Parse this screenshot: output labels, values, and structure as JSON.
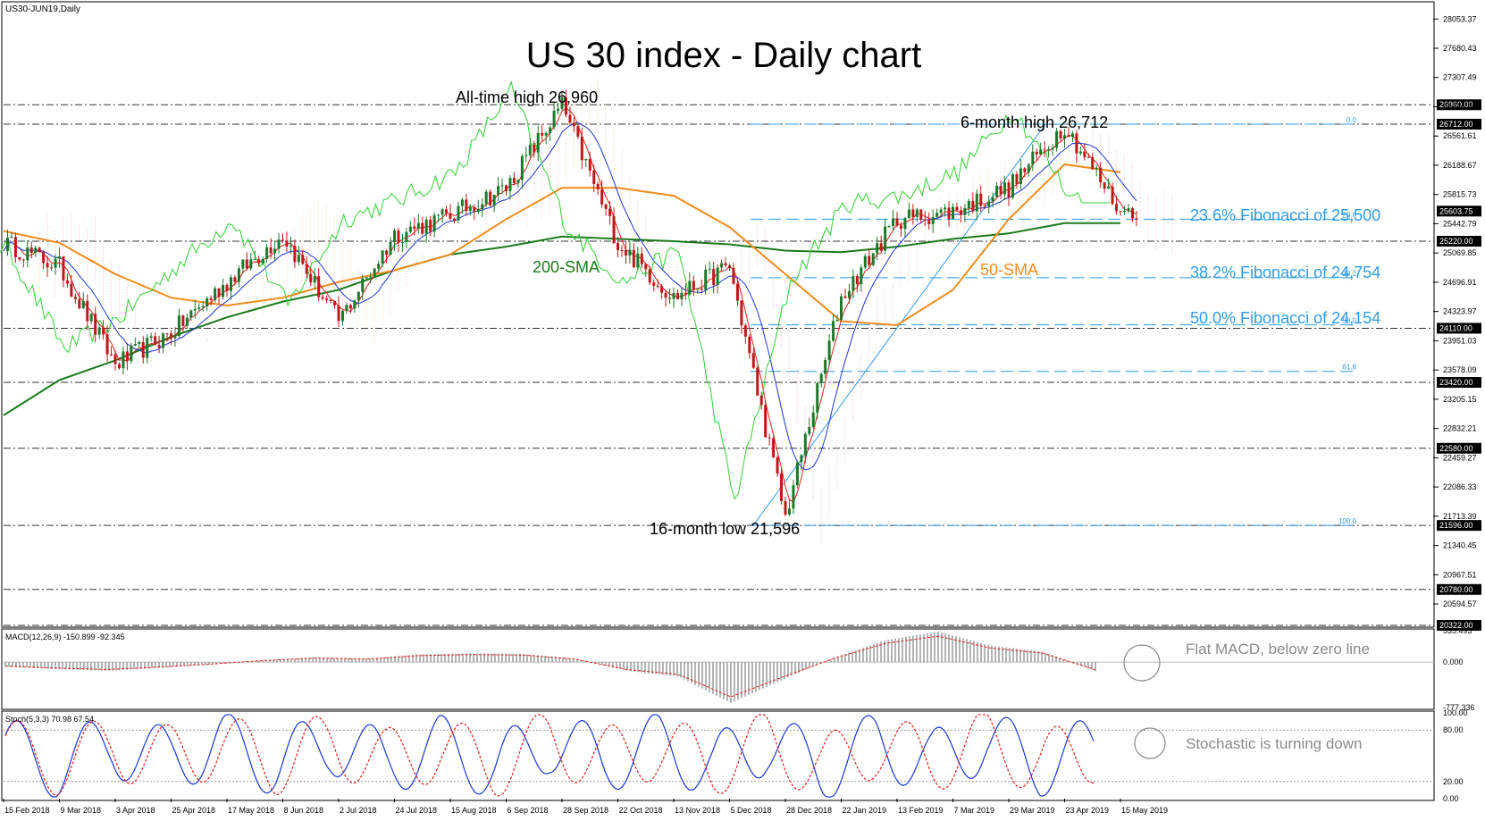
{
  "chart_data": [
    {
      "type": "candlestick",
      "symbol_label": "US30-JUN19,Daily",
      "title": "US 30 index - Daily chart",
      "ylim": [
        20322,
        28250
      ],
      "price_axis_ticks": [
        28053.37,
        27680.43,
        27307.49,
        26934.55,
        26561.61,
        26188.67,
        25815.73,
        25442.79,
        25069.85,
        24696.91,
        24323.97,
        23951.03,
        23578.09,
        23205.15,
        22832.21,
        22459.27,
        22086.33,
        21713.39,
        21340.45,
        20967.51,
        20594.57
      ],
      "price_axis_tick_labels": [
        "28053.37",
        "27680.43",
        "27307.49",
        "26934.55",
        "26561.61",
        "26188.67",
        "25815.73",
        "25442.79",
        "25069.85",
        "24696.91",
        "24323.97",
        "23951.03",
        "23578.09",
        "23205.15",
        "22832.21",
        "22459.27",
        "22086.33",
        "21713.39",
        "21340.45",
        "20967.51",
        "20594.57"
      ],
      "horizontal_levels": [
        {
          "value": 26960,
          "label": "26960.00",
          "style": "dash-dot"
        },
        {
          "value": 26712,
          "label": "26712.00",
          "style": "dash-dot"
        },
        {
          "value": 25220,
          "label": "25220.00",
          "style": "dash-dot"
        },
        {
          "value": 24110,
          "label": "24110.00",
          "style": "dash-dot"
        },
        {
          "value": 23420,
          "label": "23420.00",
          "style": "dash-dot"
        },
        {
          "value": 22580,
          "label": "22580.00",
          "style": "dash-dot"
        },
        {
          "value": 21596,
          "label": "21596.00",
          "style": "dash-dot"
        },
        {
          "value": 20780,
          "label": "20780.00",
          "style": "dash-dot"
        },
        {
          "value": 20322,
          "label": "20322.00",
          "style": "dash-dot"
        }
      ],
      "current_price": {
        "value": 25603.75,
        "label": "25603.75"
      },
      "fibonacci": [
        {
          "ratio": "0.0",
          "value": 26712
        },
        {
          "ratio": "23.6",
          "value": 25500
        },
        {
          "ratio": "38.2",
          "value": 24754
        },
        {
          "ratio": "50.0",
          "value": 24154
        },
        {
          "ratio": "61.8",
          "value": 23560
        },
        {
          "ratio": "100.0",
          "value": 21596
        }
      ],
      "x_axis_labels": [
        "15 Feb 2018",
        "9 Mar 2018",
        "3 Apr 2018",
        "25 Apr 2018",
        "17 May 2018",
        "8 Jun 2018",
        "2 Jul 2018",
        "24 Jul 2018",
        "15 Aug 2018",
        "6 Sep 2018",
        "28 Sep 2018",
        "22 Oct 2018",
        "13 Nov 2018",
        "5 Dec 2018",
        "28 Dec 2018",
        "22 Jan 2019",
        "13 Feb 2019",
        "7 Mar 2019",
        "29 Mar 2019",
        "23 Apr 2019",
        "15 May 2019"
      ],
      "key_points": [
        {
          "date": "15 Feb 2018",
          "close": 25200
        },
        {
          "date": "9 Mar 2018",
          "close": 24900
        },
        {
          "date": "3 Apr 2018",
          "close": 23650
        },
        {
          "date": "25 Apr 2018",
          "close": 24050
        },
        {
          "date": "17 May 2018",
          "close": 24700
        },
        {
          "date": "8 Jun 2018",
          "close": 25300
        },
        {
          "date": "2 Jul 2018",
          "close": 24200
        },
        {
          "date": "24 Jul 2018",
          "close": 25300
        },
        {
          "date": "15 Aug 2018",
          "close": 25550
        },
        {
          "date": "6 Sep 2018",
          "close": 25900
        },
        {
          "date": "28 Sep 2018",
          "close": 26950
        },
        {
          "date": "22 Oct 2018",
          "close": 25200
        },
        {
          "date": "13 Nov 2018",
          "close": 24500
        },
        {
          "date": "5 Dec 2018",
          "close": 24900
        },
        {
          "date": "28 Dec 2018",
          "close": 21700
        },
        {
          "date": "22 Jan 2019",
          "close": 24500
        },
        {
          "date": "13 Feb 2019",
          "close": 25500
        },
        {
          "date": "7 Mar 2019",
          "close": 25600
        },
        {
          "date": "29 Mar 2019",
          "close": 25900
        },
        {
          "date": "23 Apr 2019",
          "close": 26700
        },
        {
          "date": "15 May 2019",
          "close": 25600
        }
      ],
      "sma_200": [
        23000,
        23450,
        23700,
        24000,
        24250,
        24450,
        24600,
        24850,
        25050,
        25150,
        25280,
        25250,
        25220,
        25180,
        25100,
        25080,
        25150,
        25250,
        25320,
        25450,
        25450
      ],
      "sma_50": [
        25350,
        25200,
        24800,
        24500,
        24400,
        24500,
        24700,
        24850,
        25050,
        25500,
        25900,
        25900,
        25800,
        25400,
        24800,
        24200,
        24150,
        24600,
        25500,
        26200,
        26100
      ],
      "annotations": [
        {
          "text": "All-time high 26,960",
          "color": "#000000"
        },
        {
          "text": "6-month high 26,712",
          "color": "#000000"
        },
        {
          "text": "16-month low 21,596",
          "color": "#000000"
        },
        {
          "text": "200-SMA",
          "color": "#1b7a1b"
        },
        {
          "text": "50-SMA",
          "color": "#f28c1e"
        },
        {
          "text": "23.6% Fibonacci of 25,500",
          "color": "#2e9be8"
        },
        {
          "text": "38.2% Fibonacci of 24,754",
          "color": "#2e9be8"
        },
        {
          "text": "50.0% Fibonacci of 24,154",
          "color": "#2e9be8"
        }
      ]
    },
    {
      "type": "histogram",
      "title": "MACD(12,26,9) -150.899 -92.345",
      "ylim": [
        -777.336,
        535.493
      ],
      "tick_labels": [
        "535.493",
        "0.000",
        "-777.336"
      ],
      "annotation": "Flat MACD, below zero line",
      "values": [
        -80,
        -120,
        -150,
        -100,
        -40,
        30,
        80,
        60,
        130,
        150,
        140,
        60,
        -150,
        -250,
        -700,
        -300,
        80,
        380,
        520,
        280,
        180,
        -150
      ]
    },
    {
      "type": "line",
      "title": "Stoch(5,3,3) 70.98 67.54",
      "ylim": [
        0,
        100
      ],
      "tick_labels": [
        "100.00",
        "80.00",
        "20.00",
        "0.00"
      ],
      "annotation": "Stochastic is turning down",
      "series": [
        {
          "name": "%K",
          "color": "#1a35d6",
          "values": [
            70,
            20,
            80,
            40,
            85,
            25,
            90,
            30,
            75,
            15,
            95,
            35,
            80,
            20,
            90,
            10,
            85,
            30,
            95,
            25,
            70
          ]
        },
        {
          "name": "%D",
          "color": "#e02020",
          "values": [
            68,
            28,
            72,
            45,
            80,
            30,
            85,
            35,
            70,
            22,
            90,
            40,
            75,
            25,
            85,
            15,
            80,
            35,
            90,
            30,
            67
          ]
        }
      ]
    }
  ]
}
